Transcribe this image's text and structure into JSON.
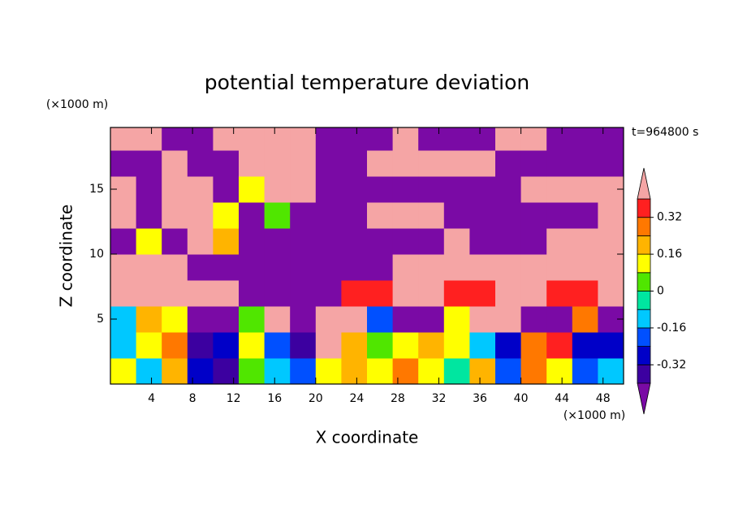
{
  "chart_data": {
    "type": "contour",
    "title": "potential temperature deviation",
    "xlabel": "X coordinate",
    "ylabel": "Z coordinate",
    "xunit": "(×1000 m)",
    "yunit": "(×1000 m)",
    "annotation": "t=964800 s",
    "xlim": [
      0,
      50
    ],
    "ylim": [
      0,
      19.75
    ],
    "xticks": [
      4,
      8,
      12,
      16,
      20,
      24,
      28,
      32,
      36,
      40,
      44,
      48
    ],
    "yticks": [
      5,
      10,
      15
    ],
    "x": [
      1.25,
      3.75,
      6.25,
      8.75,
      11.25,
      13.75,
      16.25,
      18.75,
      21.25,
      23.75,
      26.25,
      28.75,
      31.25,
      33.75,
      36.25,
      38.75,
      41.25,
      43.75,
      46.25,
      48.75
    ],
    "y": [
      1,
      3,
      5,
      7,
      9,
      11,
      13,
      15,
      17,
      19
    ],
    "values": [
      [
        0.1,
        -0.1,
        0.2,
        -0.3,
        -0.35,
        0.05,
        -0.1,
        -0.2,
        0.1,
        0.2,
        0.15,
        0.25,
        0.1,
        -0.05,
        0.2,
        -0.2,
        0.3,
        0.15,
        -0.2,
        -0.1
      ],
      [
        -0.1,
        0.15,
        0.3,
        -0.38,
        -0.3,
        0.1,
        -0.2,
        -0.35,
        0.5,
        0.2,
        0.05,
        0.15,
        0.2,
        0.1,
        -0.1,
        -0.3,
        0.25,
        0.35,
        -0.25,
        -0.3
      ],
      [
        -0.1,
        0.2,
        0.1,
        -0.5,
        -0.5,
        0.05,
        0.5,
        -0.5,
        0.5,
        0.5,
        -0.2,
        -0.5,
        -0.5,
        0.1,
        0.5,
        0.5,
        -0.5,
        -0.5,
        0.3,
        -0.5
      ],
      [
        0.5,
        0.5,
        0.5,
        0.5,
        0.5,
        -0.5,
        -0.5,
        -0.5,
        -0.5,
        0.35,
        0.35,
        0.5,
        0.5,
        0.35,
        0.35,
        0.5,
        0.5,
        0.35,
        0.35,
        0.5
      ],
      [
        0.5,
        0.5,
        0.5,
        -0.5,
        -0.5,
        -0.5,
        -0.5,
        -0.5,
        -0.5,
        -0.5,
        -0.5,
        0.5,
        0.5,
        0.5,
        0.5,
        0.5,
        0.5,
        0.5,
        0.5,
        0.5
      ],
      [
        -0.5,
        0.1,
        -0.5,
        0.5,
        0.2,
        -0.5,
        -0.5,
        -0.5,
        -0.5,
        -0.5,
        -0.5,
        -0.5,
        -0.5,
        0.5,
        -0.5,
        -0.5,
        -0.5,
        0.5,
        0.5,
        0.5
      ],
      [
        0.5,
        -0.5,
        0.5,
        0.5,
        0.1,
        -0.5,
        0,
        -0.5,
        -0.5,
        -0.5,
        0.5,
        0.5,
        0.5,
        -0.5,
        -0.5,
        -0.5,
        -0.5,
        -0.5,
        -0.5,
        0.5
      ],
      [
        0.5,
        -0.5,
        0.5,
        0.5,
        -0.5,
        0.1,
        0.5,
        0.5,
        -0.5,
        -0.5,
        -0.5,
        -0.5,
        -0.5,
        -0.5,
        -0.5,
        -0.5,
        0.5,
        0.5,
        0.5,
        0.5
      ],
      [
        -0.5,
        -0.5,
        0.5,
        -0.5,
        -0.5,
        0.5,
        0.5,
        0.5,
        -0.5,
        -0.5,
        0.5,
        0.5,
        0.5,
        0.5,
        0.5,
        -0.5,
        -0.5,
        -0.5,
        -0.5,
        -0.5
      ],
      [
        0.5,
        0.5,
        -0.5,
        -0.5,
        0.5,
        0.5,
        0.5,
        0.5,
        -0.5,
        -0.5,
        -0.5,
        0.5,
        -0.5,
        -0.5,
        -0.5,
        0.5,
        0.5,
        -0.5,
        -0.5,
        -0.5
      ]
    ],
    "levels": [
      -0.4,
      -0.32,
      -0.24,
      -0.16,
      -0.08,
      0,
      0.08,
      0.16,
      0.24,
      0.32,
      0.4
    ],
    "colors": [
      "#7a0aa5",
      "#3c00a0",
      "#0000c8",
      "#0050ff",
      "#00c8ff",
      "#00e6a0",
      "#50e600",
      "#ffff00",
      "#ffb400",
      "#ff7800",
      "#ff2020",
      "#f5a5a5"
    ],
    "cbar_ticks": [
      0.32,
      0.16,
      0,
      -0.16,
      -0.32
    ]
  }
}
